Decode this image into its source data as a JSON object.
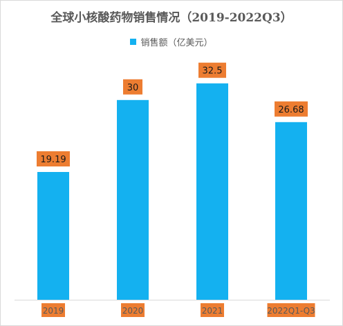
{
  "chart_data": {
    "type": "bar",
    "title": "全球小核酸药物销售情况（2019-2022Q3）",
    "categories": [
      "2019",
      "2020",
      "2021",
      "2022Q1-Q3"
    ],
    "series": [
      {
        "name": "销售额（亿美元）",
        "values": [
          19.19,
          30,
          32.5,
          26.68
        ],
        "labels": [
          "19.19",
          "30",
          "32.5",
          "26.68"
        ]
      }
    ],
    "ylim": [
      0,
      40
    ],
    "grid": false,
    "legend_position": "top"
  },
  "colors": {
    "bar": "#14b1f0",
    "label_bg": "#ed7d31",
    "label_text": "#1a1a1a",
    "axis": "#d9d9d9",
    "text": "#595959"
  }
}
